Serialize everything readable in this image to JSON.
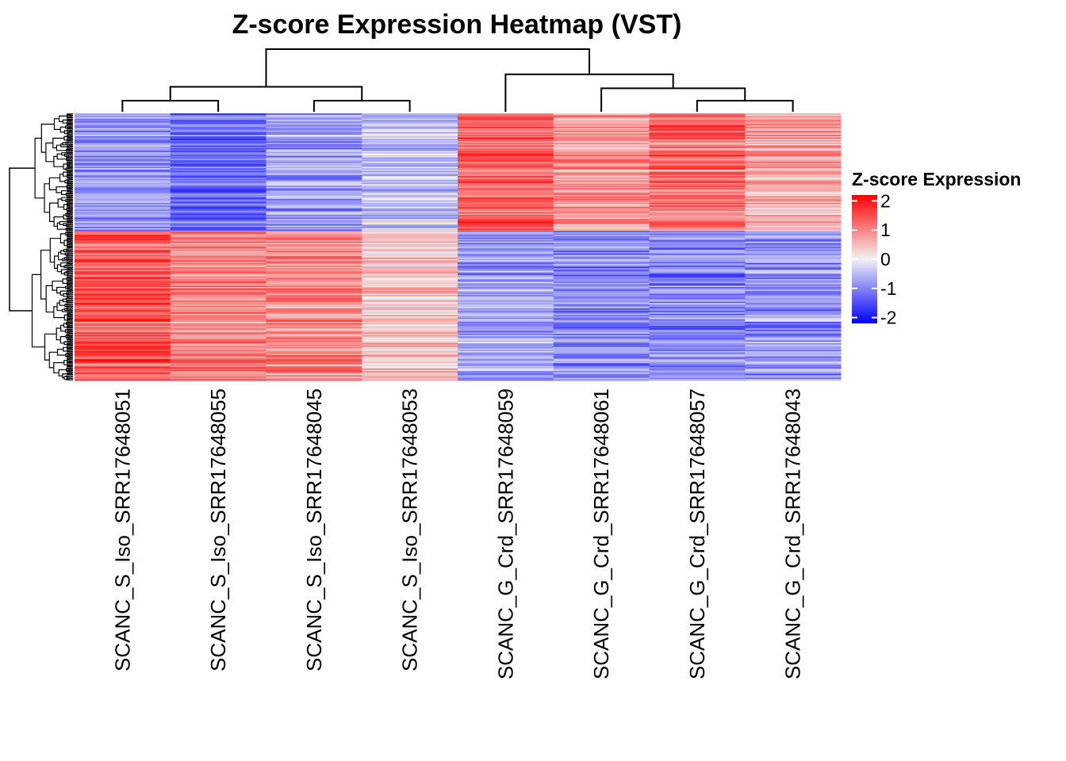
{
  "chart_data": {
    "type": "heatmap",
    "title": "Z-score Expression Heatmap (VST)",
    "columns": [
      "SCANC_S_Iso_SRR17648051",
      "SCANC_S_Iso_SRR17648055",
      "SCANC_S_Iso_SRR17648045",
      "SCANC_S_Iso_SRR17648053",
      "SCANC_G_Crd_SRR17648059",
      "SCANC_G_Crd_SRR17648061",
      "SCANC_G_Crd_SRR17648057",
      "SCANC_G_Crd_SRR17648043"
    ],
    "row_clusters": [
      {
        "name": "cluster_1",
        "row_fraction": 0.44,
        "mean_zscore": [
          -0.9,
          -1.3,
          -0.8,
          -0.5,
          1.3,
          0.8,
          1.2,
          0.7
        ]
      },
      {
        "name": "cluster_2",
        "row_fraction": 0.56,
        "mean_zscore": [
          1.4,
          1.0,
          0.9,
          0.4,
          -0.8,
          -1.0,
          -1.0,
          -0.9
        ]
      }
    ],
    "row_count": 200,
    "legend": {
      "title": "Z-score Expression",
      "ticks": [
        2,
        1,
        0,
        -1,
        -2
      ],
      "tick_labels": [
        "2",
        "1",
        "0",
        "-1",
        "-2"
      ],
      "range": [
        -2.2,
        2.2
      ],
      "placement": "right",
      "colors": {
        "low": "#0000ff",
        "mid": "#f2f2f2",
        "high": "#ff0000"
      }
    },
    "column_dendrogram": {
      "merges": [
        [
          0,
          1,
          0.3
        ],
        [
          2,
          3,
          0.3
        ],
        [
          6,
          7,
          0.3
        ],
        [
          "m0",
          "m1",
          0.4
        ],
        [
          5,
          "m2",
          0.35
        ],
        [
          4,
          "m4",
          0.4
        ],
        [
          "m3",
          "m5",
          0.8
        ]
      ]
    },
    "row_dendrogram": "shown-left"
  }
}
